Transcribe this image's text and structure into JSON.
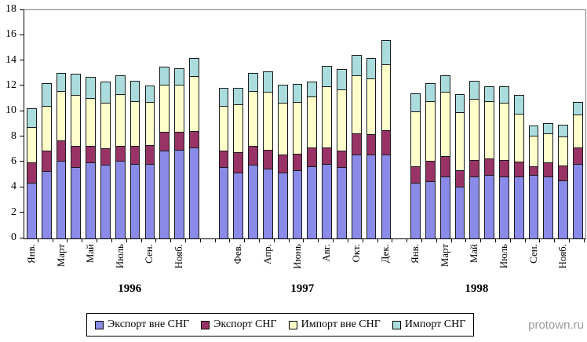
{
  "watermark": "protown.ru",
  "legend": {
    "items": [
      {
        "label": "Экспорт вне СНГ",
        "color": "#8a8ae8"
      },
      {
        "label": "Экспорт СНГ",
        "color": "#993366"
      },
      {
        "label": "Импорт вне СНГ",
        "color": "#ffffcc"
      },
      {
        "label": "Импорт СНГ",
        "color": "#aadcde"
      }
    ]
  },
  "chart_data": {
    "type": "bar",
    "stacked": true,
    "title": "",
    "xlabel": "",
    "ylabel": "",
    "ylim": [
      0,
      18
    ],
    "yticks": [
      0,
      2,
      4,
      6,
      8,
      10,
      12,
      14,
      16,
      18
    ],
    "grid": false,
    "legend_position": "bottom",
    "series_names": [
      "Экспорт вне СНГ",
      "Экспорт СНГ",
      "Импорт вне СНГ",
      "Импорт СНГ"
    ],
    "series_colors": [
      "#8a8ae8",
      "#993366",
      "#ffffcc",
      "#aadcde"
    ],
    "groups": [
      {
        "year": "1996",
        "months": [
          {
            "label": "Янв.",
            "values": [
              4.4,
              1.6,
              2.8,
              1.5
            ]
          },
          {
            "label": "",
            "values": [
              5.3,
              1.6,
              3.5,
              1.8
            ]
          },
          {
            "label": "Март",
            "values": [
              6.1,
              1.6,
              3.9,
              1.4
            ]
          },
          {
            "label": "",
            "values": [
              5.6,
              1.7,
              4.0,
              1.7
            ]
          },
          {
            "label": "Май",
            "values": [
              6.0,
              1.3,
              3.8,
              1.7
            ]
          },
          {
            "label": "",
            "values": [
              5.8,
              1.3,
              3.6,
              1.7
            ]
          },
          {
            "label": "Июль",
            "values": [
              6.1,
              1.2,
              4.1,
              1.5
            ]
          },
          {
            "label": "",
            "values": [
              5.9,
              1.4,
              3.5,
              1.6
            ]
          },
          {
            "label": "Сен.",
            "values": [
              5.9,
              1.5,
              3.4,
              1.3
            ]
          },
          {
            "label": "",
            "values": [
              6.9,
              1.5,
              3.7,
              1.4
            ]
          },
          {
            "label": "Нояб.",
            "values": [
              7.0,
              1.4,
              3.7,
              1.3
            ]
          },
          {
            "label": "",
            "values": [
              7.2,
              1.3,
              4.3,
              1.4
            ]
          }
        ]
      },
      {
        "year": "1997",
        "months": [
          {
            "label": "",
            "values": [
              5.6,
              1.3,
              3.5,
              1.4
            ]
          },
          {
            "label": "Фев.",
            "values": [
              5.2,
              1.6,
              3.8,
              1.3
            ]
          },
          {
            "label": "",
            "values": [
              5.8,
              1.5,
              4.3,
              1.4
            ]
          },
          {
            "label": "Апр.",
            "values": [
              5.5,
              1.5,
              4.6,
              1.6
            ]
          },
          {
            "label": "",
            "values": [
              5.2,
              1.4,
              4.1,
              1.4
            ]
          },
          {
            "label": "Июнь",
            "values": [
              5.4,
              1.3,
              4.1,
              1.4
            ]
          },
          {
            "label": "",
            "values": [
              5.7,
              1.5,
              4.0,
              1.2
            ]
          },
          {
            "label": "Авг.",
            "values": [
              5.9,
              1.3,
              4.8,
              1.6
            ]
          },
          {
            "label": "",
            "values": [
              5.6,
              1.3,
              4.8,
              1.6
            ]
          },
          {
            "label": "Окт.",
            "values": [
              6.6,
              1.7,
              4.6,
              1.6
            ]
          },
          {
            "label": "",
            "values": [
              6.6,
              1.6,
              4.4,
              1.6
            ]
          },
          {
            "label": "Дек.",
            "values": [
              6.6,
              1.9,
              5.2,
              1.9
            ]
          }
        ]
      },
      {
        "year": "1998",
        "months": [
          {
            "label": "Янв.",
            "values": [
              4.4,
              1.3,
              4.3,
              1.4
            ]
          },
          {
            "label": "",
            "values": [
              4.5,
              1.6,
              4.7,
              1.4
            ]
          },
          {
            "label": "Март",
            "values": [
              4.9,
              1.6,
              5.1,
              1.3
            ]
          },
          {
            "label": "",
            "values": [
              4.1,
              1.3,
              4.6,
              1.4
            ]
          },
          {
            "label": "Май",
            "values": [
              4.9,
              1.3,
              4.8,
              1.4
            ]
          },
          {
            "label": "",
            "values": [
              5.0,
              1.3,
              4.5,
              1.2
            ]
          },
          {
            "label": "Июль",
            "values": [
              4.9,
              1.3,
              4.5,
              1.3
            ]
          },
          {
            "label": "",
            "values": [
              4.9,
              1.2,
              3.8,
              1.5
            ]
          },
          {
            "label": "Сен.",
            "values": [
              5.0,
              0.7,
              2.4,
              0.8
            ]
          },
          {
            "label": "",
            "values": [
              4.9,
              1.1,
              2.3,
              0.8
            ]
          },
          {
            "label": "Нояб.",
            "values": [
              4.6,
              1.2,
              2.3,
              0.9
            ]
          },
          {
            "label": "",
            "values": [
              5.9,
              1.3,
              2.6,
              1.0
            ]
          }
        ]
      }
    ]
  }
}
